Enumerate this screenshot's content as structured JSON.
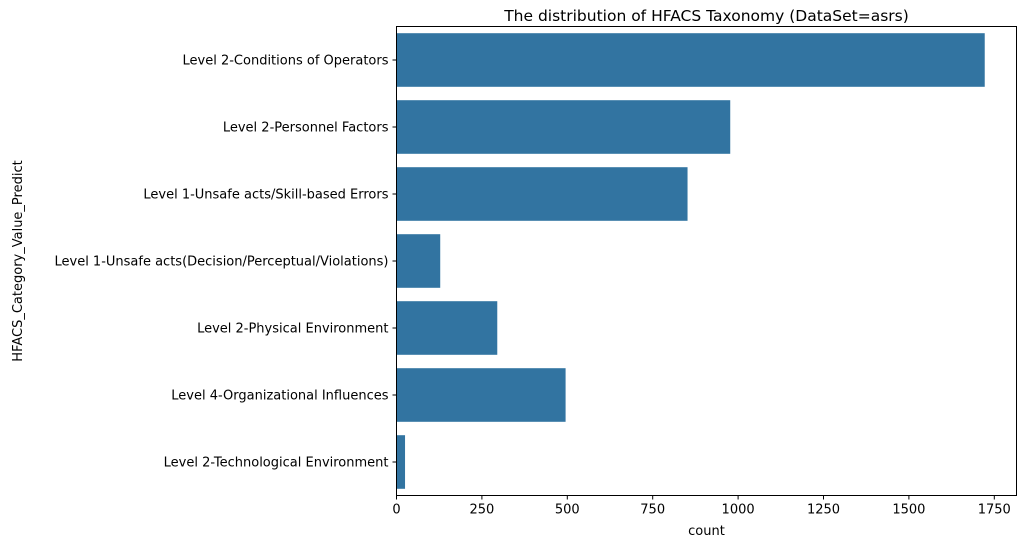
{
  "chart_data": {
    "type": "bar",
    "orientation": "horizontal",
    "title": "The distribution of HFACS Taxonomy (DataSet=asrs)",
    "xlabel": "count",
    "ylabel": "HFACS_Category_Value_Predict",
    "categories": [
      "Level 2-Conditions of Operators",
      "Level 2-Personnel Factors",
      "Level 1-Unsafe acts/Skill-based Errors",
      "Level 1-Unsafe acts(Decision/Perceptual/Violations)",
      "Level 2-Physical Environment",
      "Level 4-Organizational Influences",
      "Level 2-Technological Environment"
    ],
    "values": [
      1722,
      977,
      852,
      128,
      295,
      495,
      25
    ],
    "xlim": [
      0,
      1815
    ],
    "xticks": [
      0,
      250,
      500,
      750,
      1000,
      1250,
      1500,
      1750
    ],
    "grid": false,
    "bar_color": "#3274a1"
  }
}
